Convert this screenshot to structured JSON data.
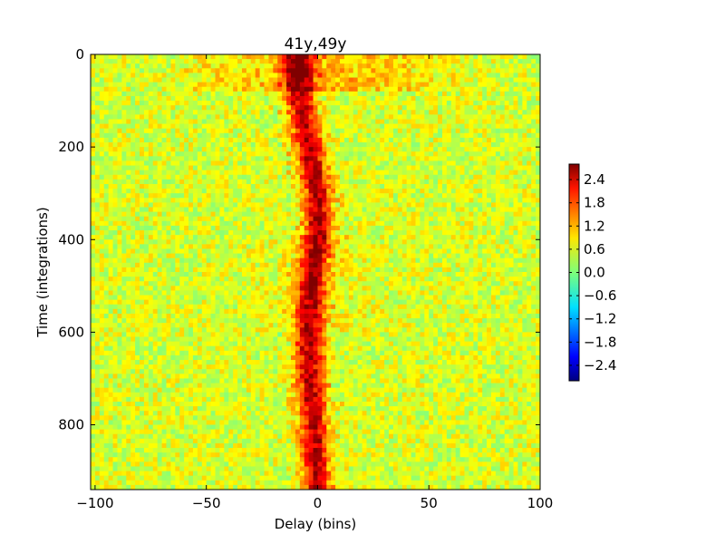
{
  "chart_data": {
    "type": "heatmap",
    "title": "41y,49y",
    "xlabel": "Delay (bins)",
    "ylabel": "Time (integrations)",
    "xlim": [
      -102,
      100
    ],
    "ylim": [
      940,
      0
    ],
    "xticks": [
      -100,
      -50,
      0,
      50,
      100
    ],
    "xtick_labels": [
      "−100",
      "−50",
      "0",
      "50",
      "100"
    ],
    "yticks": [
      0,
      200,
      400,
      600,
      800
    ],
    "ytick_labels": [
      "0",
      "200",
      "400",
      "600",
      "800"
    ],
    "colormap": "jet",
    "color_range": [
      -2.8,
      2.8
    ],
    "colorbar": {
      "ticks": [
        2.4,
        1.8,
        1.2,
        0.6,
        0.0,
        -0.6,
        -1.2,
        -1.8,
        -2.4
      ],
      "tick_labels": [
        "2.4",
        "1.8",
        "1.2",
        "0.6",
        "0.0",
        "−0.6",
        "−1.2",
        "−1.8",
        "−2.4"
      ],
      "placement": "right"
    },
    "description_values": {
      "background_level": 0.5,
      "ridge_peak_level": 2.5,
      "ridge_center_delay": [
        {
          "time": 0,
          "delay": -9
        },
        {
          "time": 100,
          "delay": -8
        },
        {
          "time": 200,
          "delay": -4
        },
        {
          "time": 300,
          "delay": 0
        },
        {
          "time": 400,
          "delay": 0
        },
        {
          "time": 500,
          "delay": -3
        },
        {
          "time": 600,
          "delay": -4
        },
        {
          "time": 700,
          "delay": -3
        },
        {
          "time": 800,
          "delay": -2
        },
        {
          "time": 940,
          "delay": 0
        }
      ],
      "top_band_time_range": [
        0,
        80
      ],
      "top_band_level": 1.3
    },
    "grid": false
  }
}
